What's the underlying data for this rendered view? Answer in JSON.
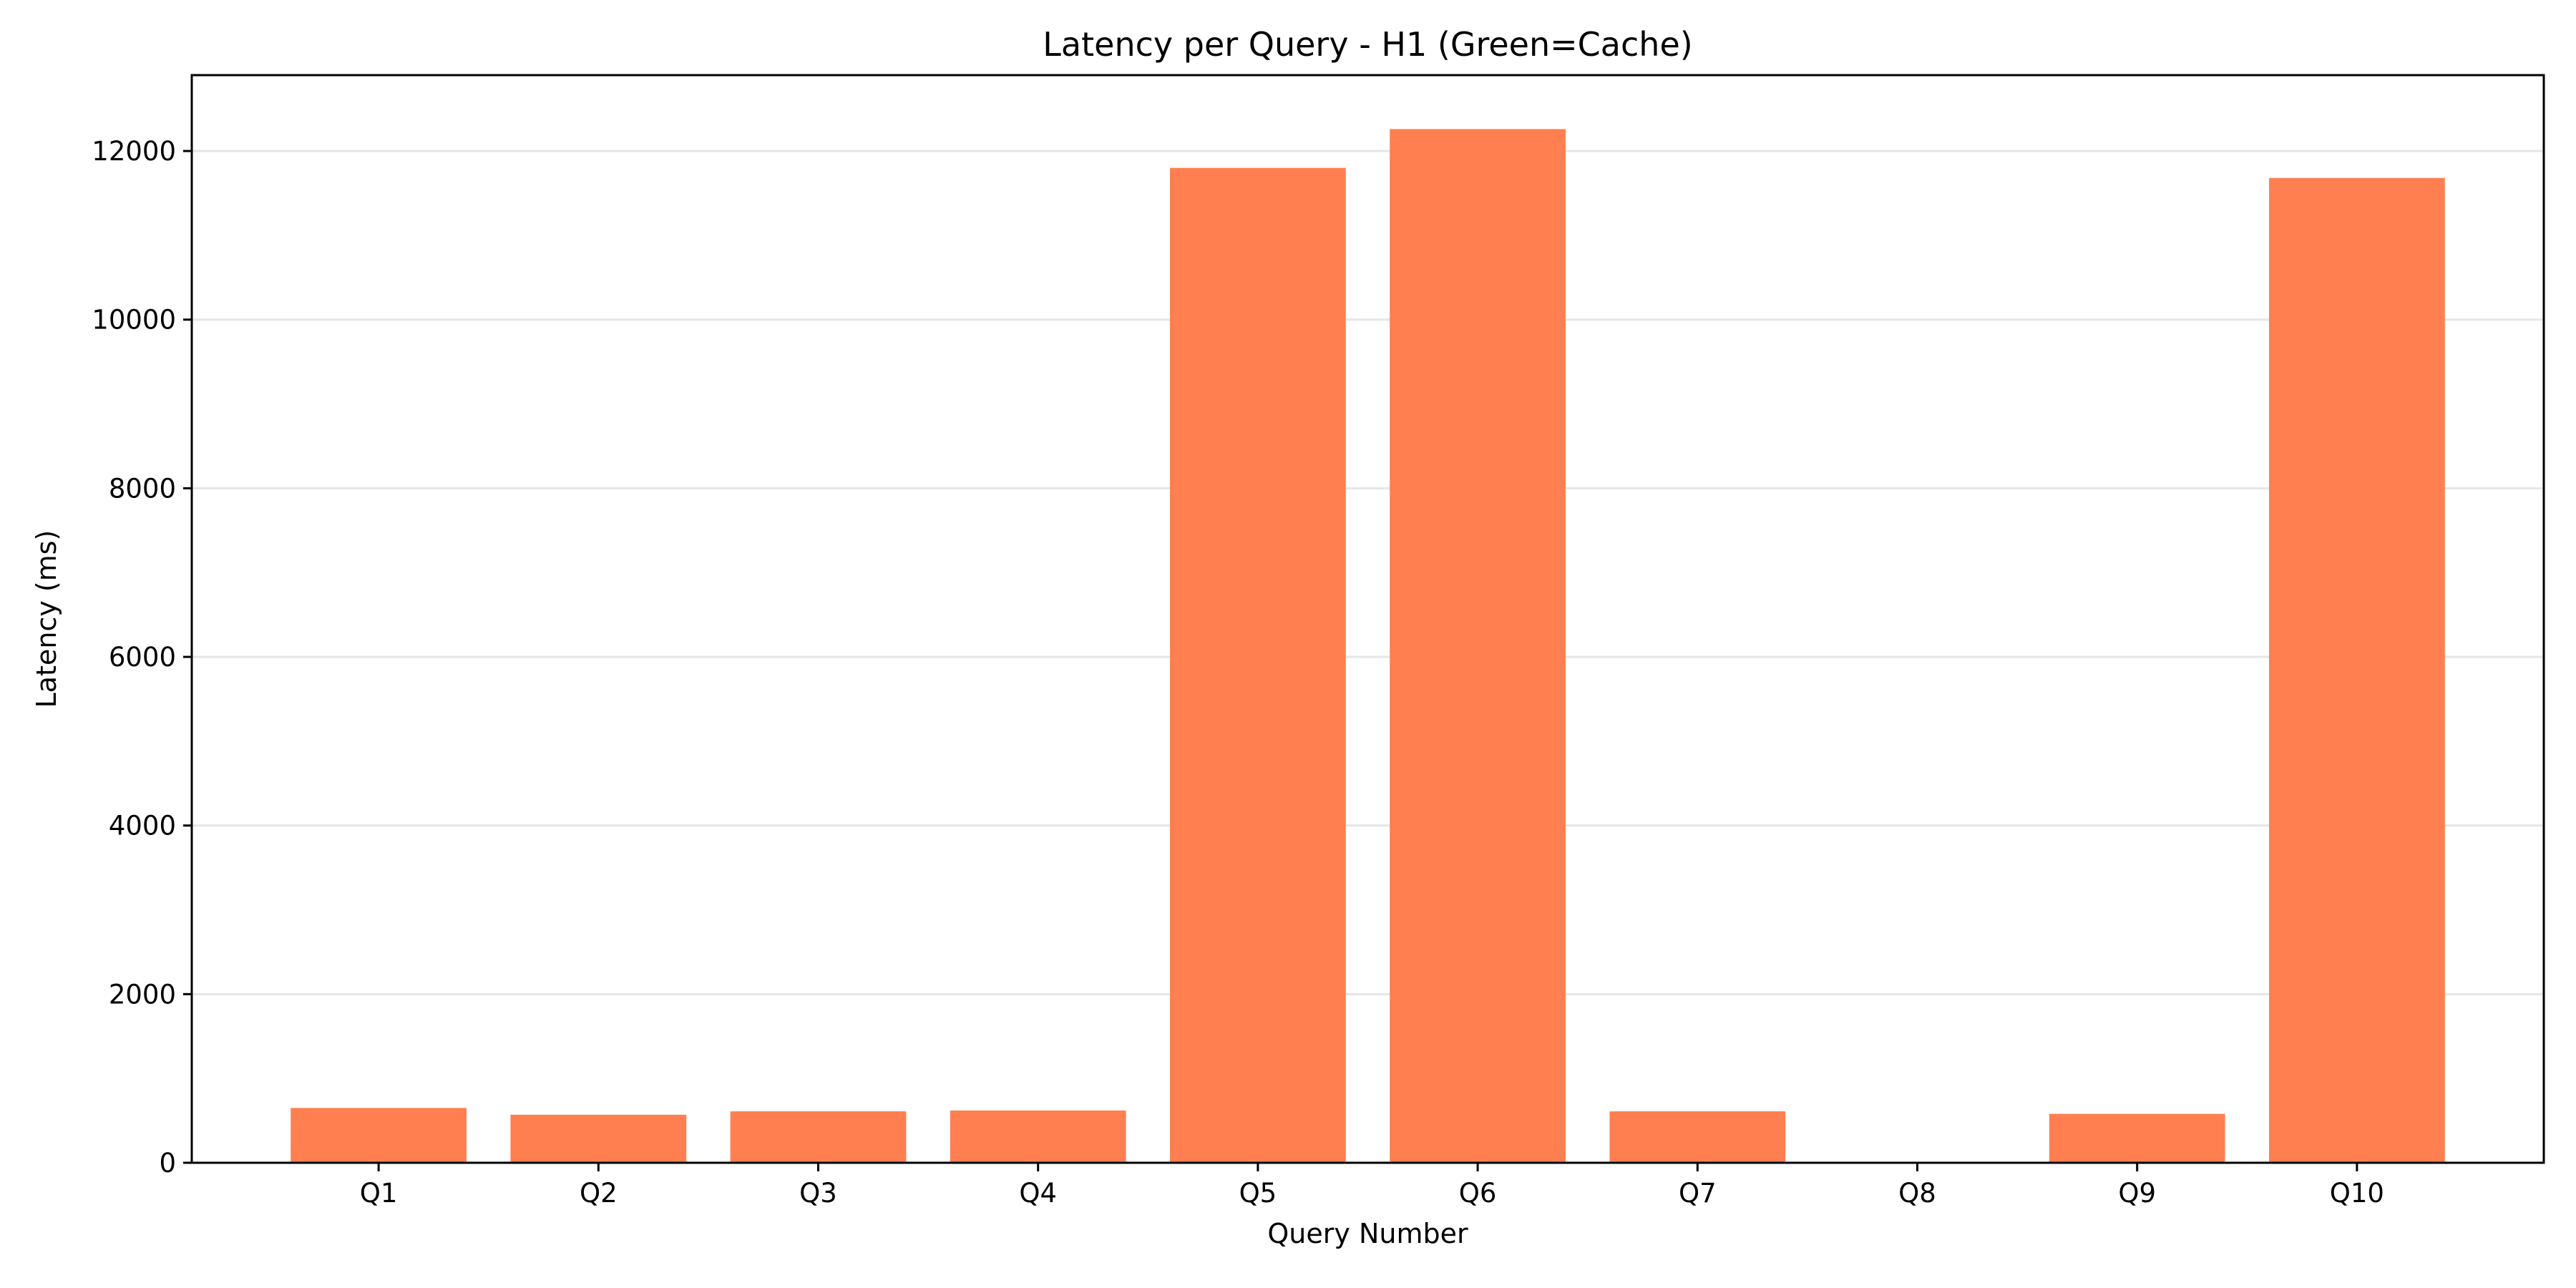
{
  "chart_data": {
    "type": "bar",
    "title": "Latency per Query - H1 (Green=Cache)",
    "xlabel": "Query Number",
    "ylabel": "Latency (ms)",
    "categories": [
      "Q1",
      "Q2",
      "Q3",
      "Q4",
      "Q5",
      "Q6",
      "Q7",
      "Q8",
      "Q9",
      "Q10"
    ],
    "values": [
      650,
      570,
      610,
      620,
      11800,
      12260,
      610,
      0,
      580,
      11680
    ],
    "ylim": [
      0,
      12900
    ],
    "yticks": [
      0,
      2000,
      4000,
      6000,
      8000,
      10000,
      12000
    ],
    "grid": "y",
    "bar_color": "#ff7f50"
  }
}
